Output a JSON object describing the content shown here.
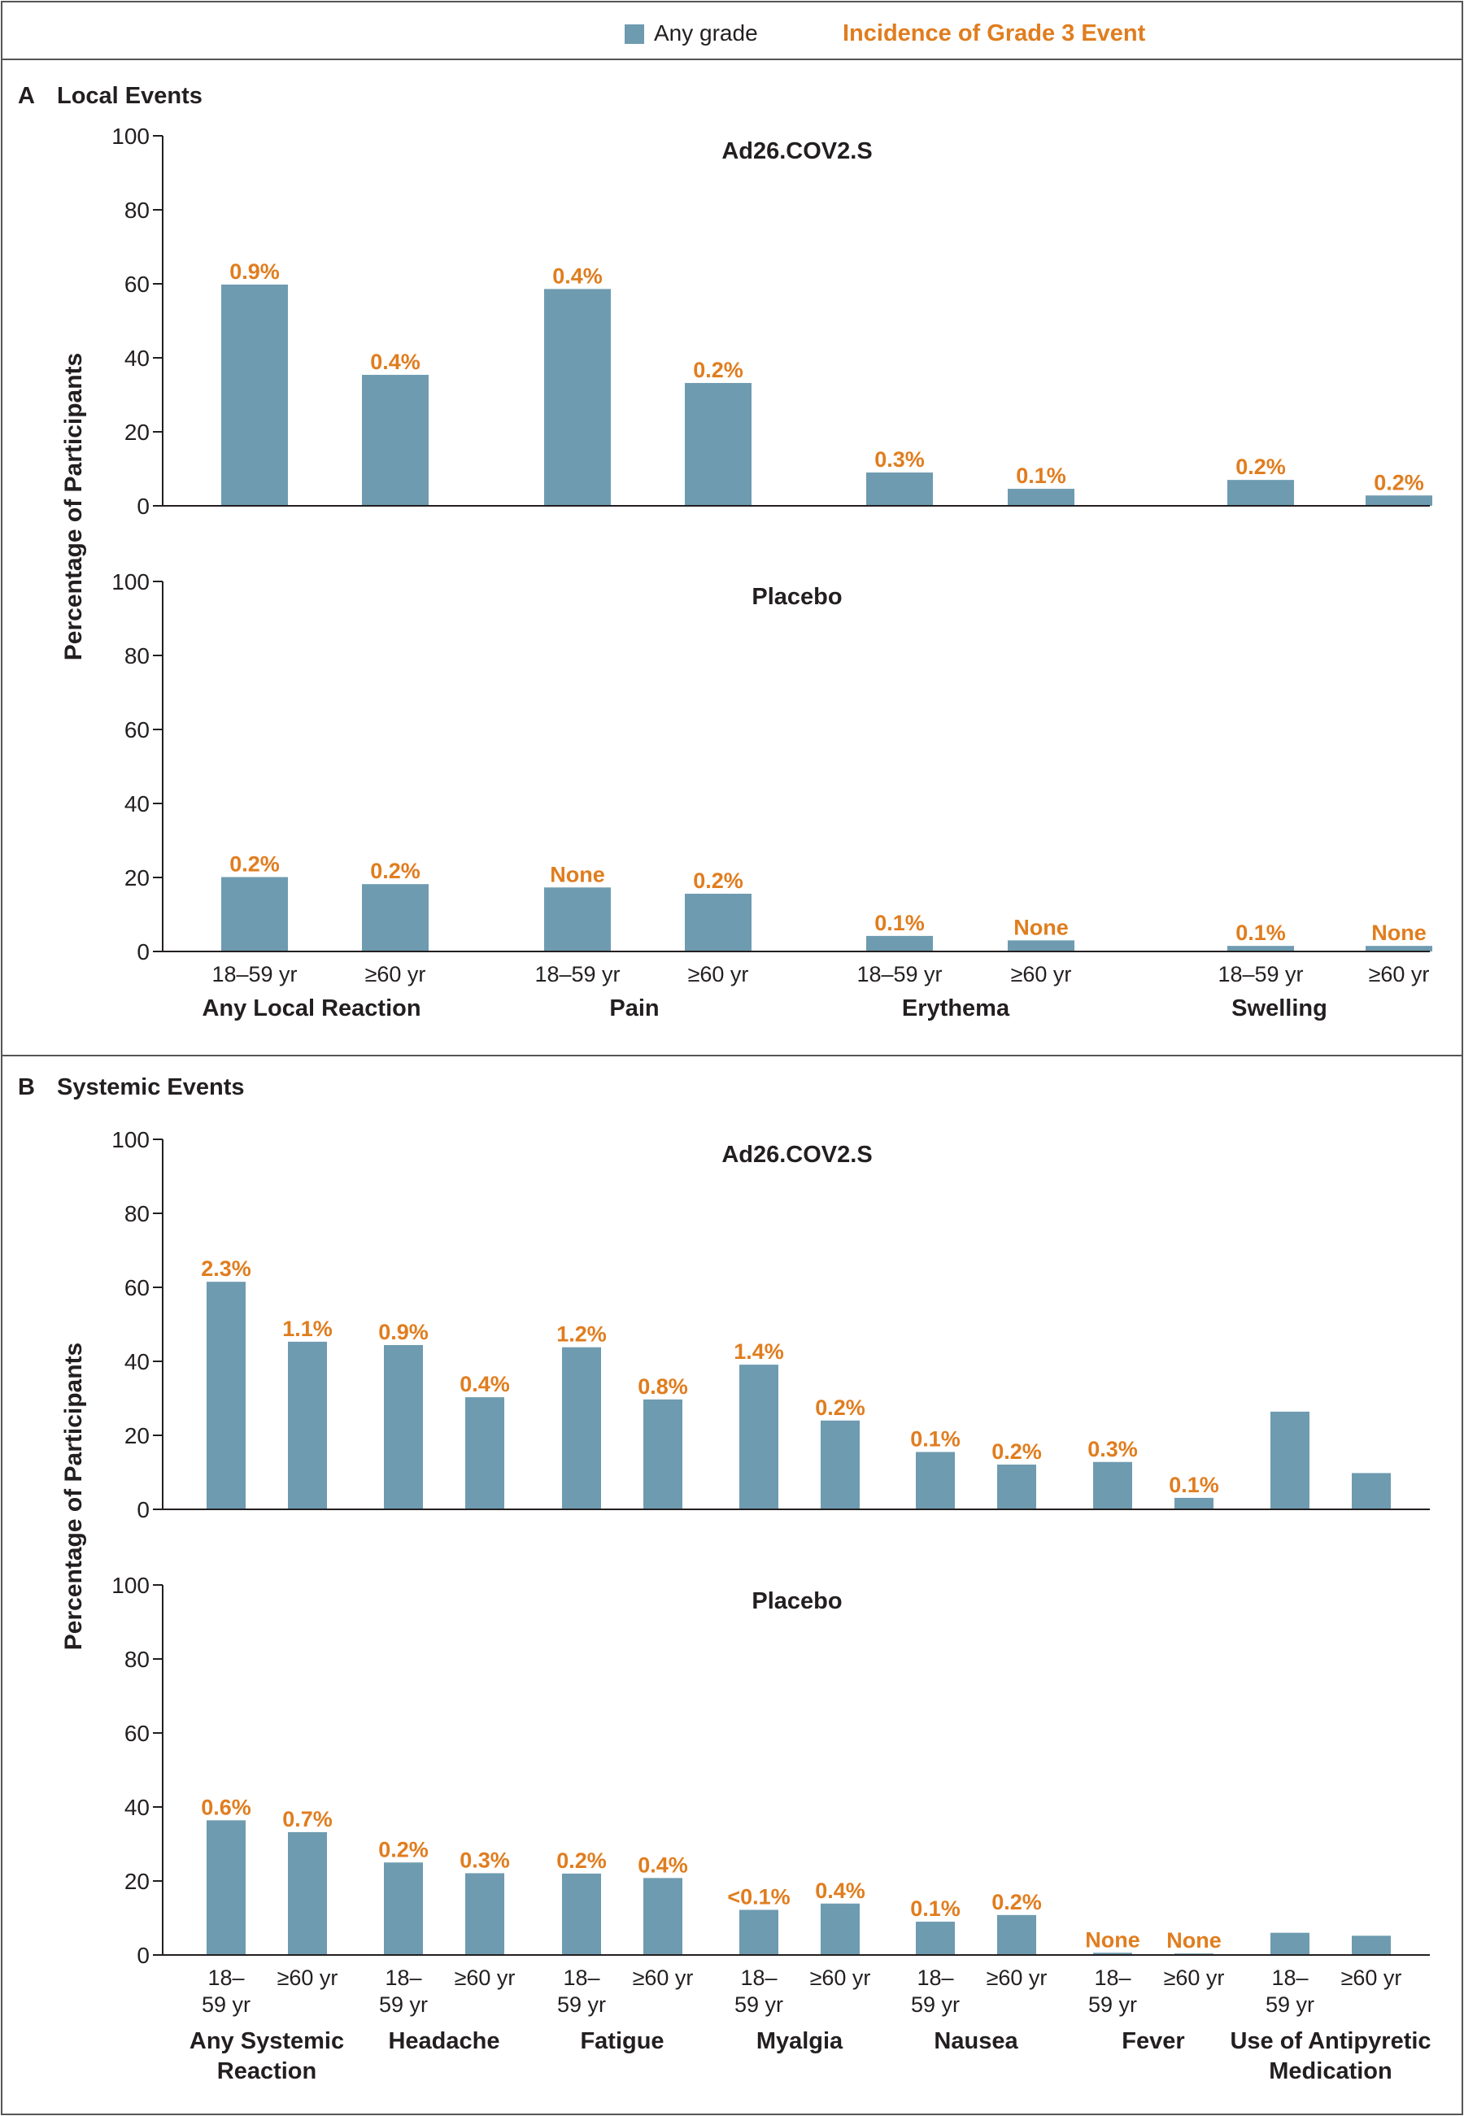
{
  "legend": {
    "any_grade_label": "Any grade",
    "grade3_label": "Incidence of Grade 3 Event"
  },
  "colors": {
    "bar": "#6e9bb0",
    "grade3_text": "#e07d1f",
    "text": "#231f20",
    "frame": "#555555"
  },
  "panels": [
    {
      "letter": "A",
      "title": "Local Events",
      "ylabel": "Percentage of Participants",
      "xtick_labels": [
        [
          "18–59 yr"
        ],
        [
          "≥60 yr"
        ],
        [
          "18–59 yr"
        ],
        [
          "≥60 yr"
        ],
        [
          "18–59 yr"
        ],
        [
          "≥60 yr"
        ],
        [
          "18–59 yr"
        ],
        [
          "≥60 yr"
        ]
      ],
      "group_labels": [
        [
          "Any Local Reaction"
        ],
        [
          "Pain"
        ],
        [
          "Erythema"
        ],
        [
          "Swelling"
        ]
      ]
    },
    {
      "letter": "B",
      "title": "Systemic Events",
      "ylabel": "Percentage of Participants",
      "xtick_labels": [
        [
          "18–",
          "59 yr"
        ],
        [
          "≥60 yr"
        ],
        [
          "18–",
          "59 yr"
        ],
        [
          "≥60 yr"
        ],
        [
          "18–",
          "59 yr"
        ],
        [
          "≥60 yr"
        ],
        [
          "18–",
          "59 yr"
        ],
        [
          "≥60 yr"
        ],
        [
          "18–",
          "59 yr"
        ],
        [
          "≥60 yr"
        ],
        [
          "18–",
          "59 yr"
        ],
        [
          "≥60 yr"
        ],
        [
          "18–",
          "59 yr"
        ],
        [
          "≥60 yr"
        ]
      ],
      "group_labels": [
        [
          "Any Systemic",
          "Reaction"
        ],
        [
          "Headache"
        ],
        [
          "Fatigue"
        ],
        [
          "Myalgia"
        ],
        [
          "Nausea"
        ],
        [
          "Fever"
        ],
        [
          "Use of Antipyretic",
          "Medication"
        ]
      ]
    }
  ],
  "chart_data": [
    {
      "type": "bar",
      "panel": "A",
      "title": "Ad26.COV2.S",
      "ylabel": "Percentage of Participants",
      "ylim": [
        0,
        100
      ],
      "yticks": [
        0,
        20,
        40,
        60,
        80,
        100
      ],
      "groups": [
        "Any Local Reaction",
        "Pain",
        "Erythema",
        "Swelling"
      ],
      "categories": [
        "18–59 yr",
        "≥60 yr",
        "18–59 yr",
        "≥60 yr",
        "18–59 yr",
        "≥60 yr",
        "18–59 yr",
        "≥60 yr"
      ],
      "values": [
        59.8,
        35.4,
        58.6,
        33.2,
        9.0,
        4.6,
        7.0,
        2.8
      ],
      "grade3_labels": [
        "0.9%",
        "0.4%",
        "0.4%",
        "0.2%",
        "0.3%",
        "0.1%",
        "0.2%",
        "0.2%"
      ]
    },
    {
      "type": "bar",
      "panel": "A",
      "title": "Placebo",
      "ylabel": "Percentage of Participants",
      "ylim": [
        0,
        100
      ],
      "yticks": [
        0,
        20,
        40,
        60,
        80,
        100
      ],
      "groups": [
        "Any Local Reaction",
        "Pain",
        "Erythema",
        "Swelling"
      ],
      "categories": [
        "18–59 yr",
        "≥60 yr",
        "18–59 yr",
        "≥60 yr",
        "18–59 yr",
        "≥60 yr",
        "18–59 yr",
        "≥60 yr"
      ],
      "values": [
        20.1,
        18.2,
        17.3,
        15.6,
        4.2,
        3.0,
        1.5,
        1.5
      ],
      "grade3_labels": [
        "0.2%",
        "0.2%",
        "None",
        "0.2%",
        "0.1%",
        "None",
        "0.1%",
        "None"
      ]
    },
    {
      "type": "bar",
      "panel": "B",
      "title": "Ad26.COV2.S",
      "ylabel": "Percentage of Participants",
      "ylim": [
        0,
        100
      ],
      "yticks": [
        0,
        20,
        40,
        60,
        80,
        100
      ],
      "groups": [
        "Any Systemic Reaction",
        "Headache",
        "Fatigue",
        "Myalgia",
        "Nausea",
        "Fever",
        "Use of Antipyretic Medication"
      ],
      "categories": [
        "18–59 yr",
        "≥60 yr",
        "18–59 yr",
        "≥60 yr",
        "18–59 yr",
        "≥60 yr",
        "18–59 yr",
        "≥60 yr",
        "18–59 yr",
        "≥60 yr",
        "18–59 yr",
        "≥60 yr",
        "18–59 yr",
        "≥60 yr"
      ],
      "values": [
        61.5,
        45.3,
        44.4,
        30.3,
        43.8,
        29.7,
        39.1,
        24.0,
        15.5,
        12.1,
        12.8,
        3.1,
        26.4,
        9.8
      ],
      "grade3_labels": [
        "2.3%",
        "1.1%",
        "0.9%",
        "0.4%",
        "1.2%",
        "0.8%",
        "1.4%",
        "0.2%",
        "0.1%",
        "0.2%",
        "0.3%",
        "0.1%",
        "",
        ""
      ]
    },
    {
      "type": "bar",
      "panel": "B",
      "title": "Placebo",
      "ylabel": "Percentage of Participants",
      "ylim": [
        0,
        100
      ],
      "yticks": [
        0,
        20,
        40,
        60,
        80,
        100
      ],
      "groups": [
        "Any Systemic Reaction",
        "Headache",
        "Fatigue",
        "Myalgia",
        "Nausea",
        "Fever",
        "Use of Antipyretic Medication"
      ],
      "categories": [
        "18–59 yr",
        "≥60 yr",
        "18–59 yr",
        "≥60 yr",
        "18–59 yr",
        "≥60 yr",
        "18–59 yr",
        "≥60 yr",
        "18–59 yr",
        "≥60 yr",
        "18–59 yr",
        "≥60 yr",
        "18–59 yr",
        "≥60 yr"
      ],
      "values": [
        36.4,
        33.2,
        25.0,
        22.1,
        22.0,
        20.8,
        12.2,
        13.9,
        9.0,
        10.8,
        0.6,
        0.4,
        6.0,
        5.2
      ],
      "grade3_labels": [
        "0.6%",
        "0.7%",
        "0.2%",
        "0.3%",
        "0.2%",
        "0.4%",
        "<0.1%",
        "0.4%",
        "0.1%",
        "0.2%",
        "None",
        "None",
        "",
        ""
      ]
    }
  ]
}
